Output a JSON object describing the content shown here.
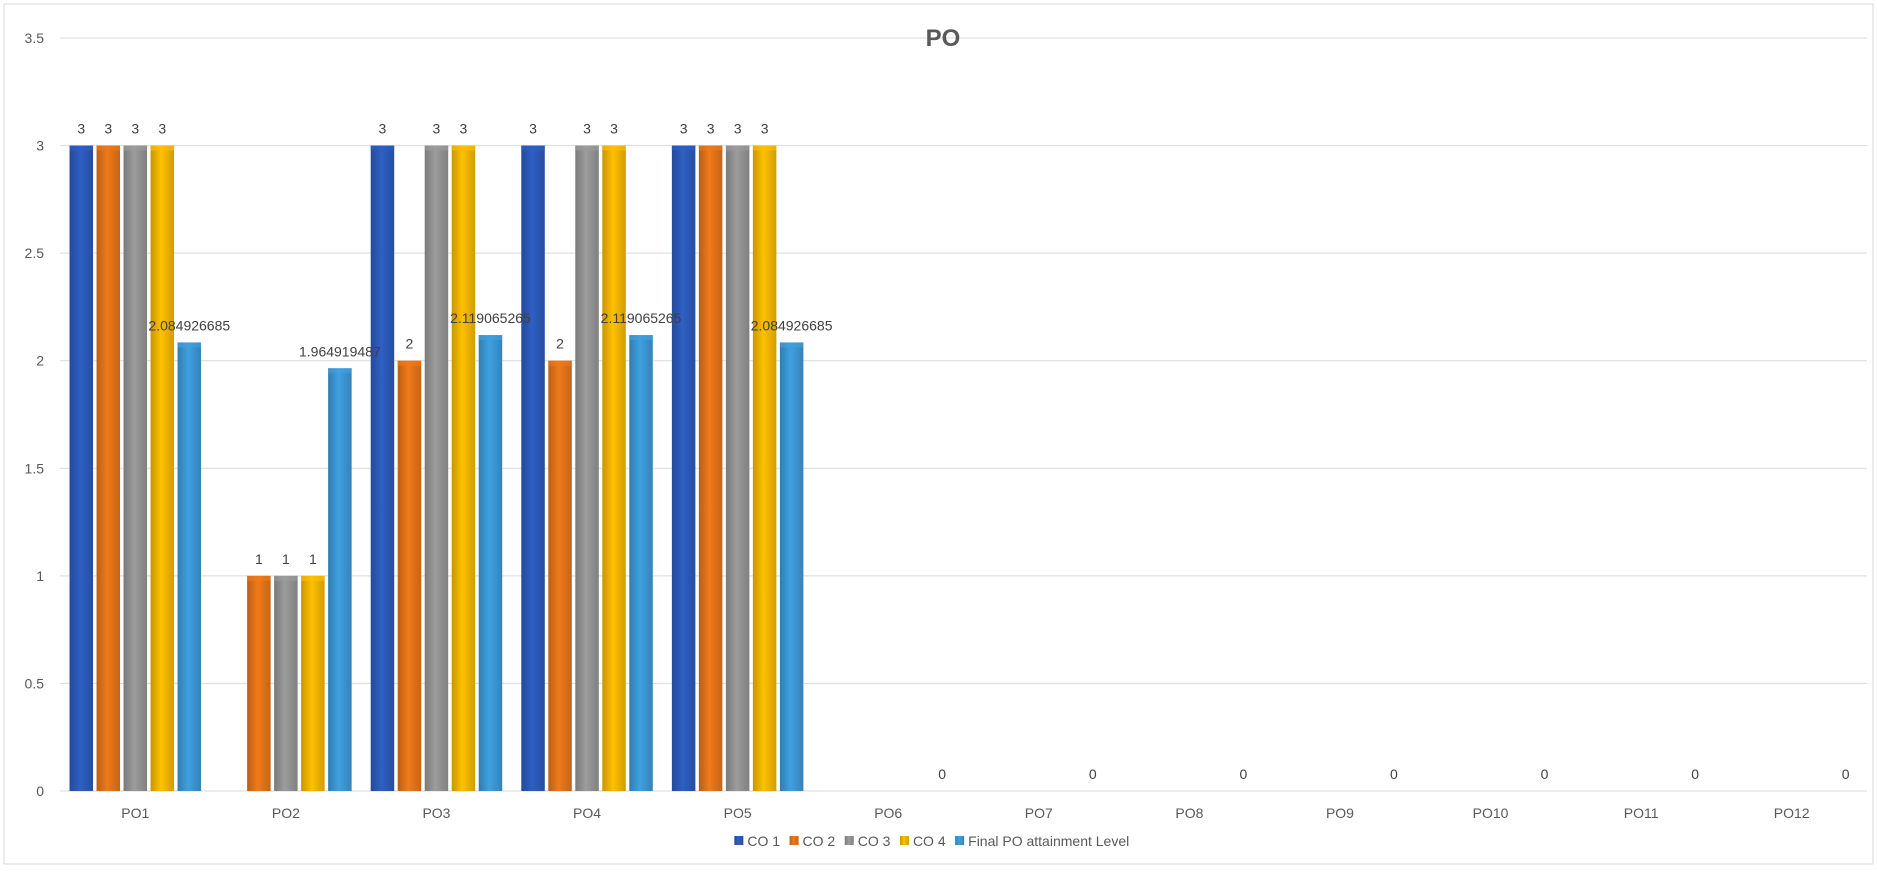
{
  "chart_data": {
    "type": "bar",
    "title": "PO",
    "xlabel": "",
    "ylabel": "",
    "ylim": [
      0,
      3.5
    ],
    "yticks": [
      0,
      0.5,
      1,
      1.5,
      2,
      2.5,
      3,
      3.5
    ],
    "ytick_labels": [
      "0",
      "0.5",
      "1",
      "1.5",
      "2",
      "2.5",
      "3",
      "3.5"
    ],
    "grid": true,
    "legend_position": "bottom",
    "categories": [
      "PO1",
      "PO2",
      "PO3",
      "PO4",
      "PO5",
      "PO6",
      "PO7",
      "PO8",
      "PO9",
      "PO10",
      "PO11",
      "PO12"
    ],
    "series": [
      {
        "name": "CO 1",
        "color": "#2E5FC4",
        "values": [
          3,
          null,
          3,
          3,
          3,
          null,
          null,
          null,
          null,
          null,
          null,
          null
        ],
        "labels": [
          "3",
          "",
          "3",
          "3",
          "3",
          "",
          "",
          "",
          "",
          "",
          "",
          ""
        ]
      },
      {
        "name": "CO 2",
        "color": "#F07A1A",
        "values": [
          3,
          1,
          2,
          2,
          3,
          null,
          null,
          null,
          null,
          null,
          null,
          null
        ],
        "labels": [
          "3",
          "1",
          "2",
          "2",
          "3",
          "",
          "",
          "",
          "",
          "",
          "",
          ""
        ]
      },
      {
        "name": "CO 3",
        "color": "#9C9C9C",
        "values": [
          3,
          1,
          3,
          3,
          3,
          null,
          null,
          null,
          null,
          null,
          null,
          null
        ],
        "labels": [
          "3",
          "1",
          "3",
          "3",
          "3",
          "",
          "",
          "",
          "",
          "",
          "",
          ""
        ]
      },
      {
        "name": "CO 4",
        "color": "#FFC000",
        "values": [
          3,
          1,
          3,
          3,
          3,
          null,
          null,
          null,
          null,
          null,
          null,
          null
        ],
        "labels": [
          "3",
          "1",
          "3",
          "3",
          "3",
          "",
          "",
          "",
          "",
          "",
          "",
          ""
        ]
      },
      {
        "name": "Final PO attainment Level",
        "color": "#3FA0E0",
        "values": [
          2.084926685,
          1.964919487,
          2.119065265,
          2.119065265,
          2.084926685,
          0,
          0,
          0,
          0,
          0,
          0,
          0
        ],
        "labels": [
          "2.084926685",
          "1.964919487",
          "2.119065265",
          "2.119065265",
          "2.084926685",
          "0",
          "0",
          "0",
          "0",
          "0",
          "0",
          "0"
        ]
      }
    ]
  }
}
